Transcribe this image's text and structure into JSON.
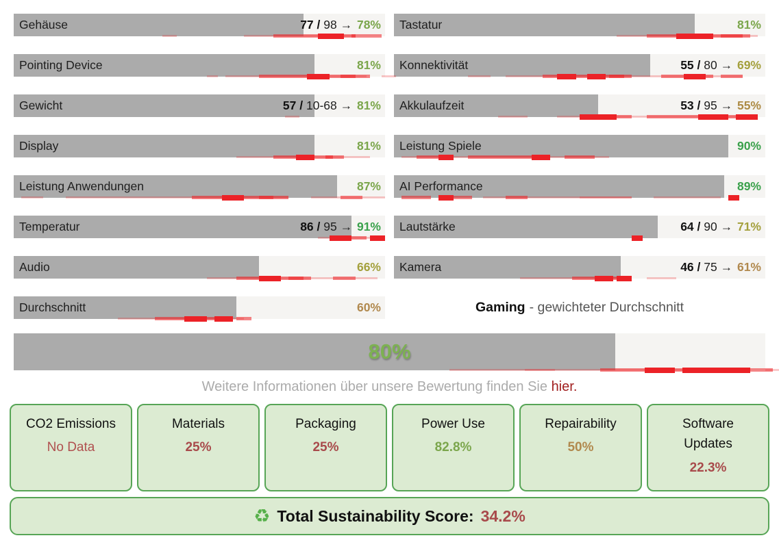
{
  "ratings": {
    "left": [
      {
        "label": "Gehäuse",
        "raw": "77",
        "max": "98",
        "pct": "78%",
        "fill": 78,
        "color": "#7ba64c",
        "dist": [
          [
            40,
            4,
            1
          ],
          [
            62,
            30,
            1
          ],
          [
            70,
            22,
            2
          ],
          [
            82,
            7,
            3
          ],
          [
            91,
            8,
            2
          ]
        ]
      },
      {
        "label": "Pointing Device",
        "pct": "81%",
        "fill": 81,
        "color": "#7ba64c",
        "dist": [
          [
            52,
            3,
            1
          ],
          [
            57,
            38,
            1
          ],
          [
            66,
            26,
            2
          ],
          [
            79,
            6,
            3
          ],
          [
            88,
            8,
            2
          ],
          [
            99,
            4,
            1
          ]
        ]
      },
      {
        "label": "Gewicht",
        "raw": "57",
        "max": "10-68",
        "pct": "81%",
        "fill": 81,
        "color": "#7ba64c",
        "dist": [
          [
            73,
            4,
            1
          ]
        ]
      },
      {
        "label": "Display",
        "pct": "81%",
        "fill": 81,
        "color": "#7ba64c",
        "dist": [
          [
            60,
            36,
            1
          ],
          [
            70,
            16,
            2
          ],
          [
            76,
            5,
            3
          ],
          [
            84,
            5,
            2
          ]
        ]
      },
      {
        "label": "Leistung Anwendungen",
        "pct": "87%",
        "fill": 87,
        "color": "#7ba64c",
        "dist": [
          [
            2,
            6,
            1
          ],
          [
            14,
            60,
            1
          ],
          [
            48,
            26,
            2
          ],
          [
            56,
            6,
            3
          ],
          [
            66,
            4,
            2
          ],
          [
            80,
            16,
            1
          ],
          [
            88,
            6,
            2
          ],
          [
            96,
            4,
            1
          ]
        ]
      },
      {
        "label": "Temperatur",
        "raw": "86",
        "max": "95",
        "pct": "91%",
        "fill": 91,
        "color": "#3ba14c",
        "dist": [
          [
            82,
            18,
            1
          ],
          [
            85,
            6,
            3
          ],
          [
            90,
            5,
            2
          ],
          [
            96,
            4,
            3
          ]
        ]
      },
      {
        "label": "Audio",
        "pct": "66%",
        "fill": 66,
        "color": "#a4a03d",
        "dist": [
          [
            52,
            46,
            1
          ],
          [
            60,
            18,
            2
          ],
          [
            66,
            6,
            3
          ],
          [
            74,
            6,
            2
          ],
          [
            86,
            6,
            2
          ]
        ]
      },
      {
        "label": "Durchschnitt",
        "pct": "60%",
        "fill": 60,
        "color": "#b1894e",
        "dist": [
          [
            28,
            34,
            1
          ],
          [
            38,
            20,
            2
          ],
          [
            46,
            6,
            3
          ],
          [
            54,
            5,
            3
          ],
          [
            60,
            4,
            2
          ]
        ]
      }
    ],
    "right": [
      {
        "label": "Tastatur",
        "pct": "81%",
        "fill": 81,
        "color": "#7ba64c",
        "dist": [
          [
            60,
            38,
            1
          ],
          [
            68,
            28,
            2
          ],
          [
            76,
            10,
            3
          ],
          [
            88,
            6,
            2
          ]
        ]
      },
      {
        "label": "Konnektivität",
        "raw": "55",
        "max": "80",
        "pct": "69%",
        "fill": 69,
        "color": "#a4a03d",
        "dist": [
          [
            20,
            6,
            1
          ],
          [
            30,
            64,
            1
          ],
          [
            40,
            24,
            2
          ],
          [
            44,
            5,
            3
          ],
          [
            52,
            5,
            3
          ],
          [
            58,
            4,
            2
          ],
          [
            72,
            14,
            2
          ],
          [
            78,
            6,
            3
          ],
          [
            88,
            6,
            2
          ]
        ]
      },
      {
        "label": "Akkulaufzeit",
        "raw": "53",
        "max": "95",
        "pct": "55%",
        "fill": 55,
        "color": "#ad8b45",
        "dist": [
          [
            28,
            8,
            1
          ],
          [
            44,
            52,
            1
          ],
          [
            50,
            10,
            3
          ],
          [
            56,
            8,
            2
          ],
          [
            68,
            24,
            2
          ],
          [
            82,
            8,
            3
          ],
          [
            92,
            6,
            3
          ]
        ]
      },
      {
        "label": "Leistung Spiele",
        "pct": "90%",
        "fill": 90,
        "color": "#3ba14c",
        "dist": [
          [
            2,
            56,
            1
          ],
          [
            6,
            8,
            2
          ],
          [
            12,
            4,
            3
          ],
          [
            20,
            10,
            2
          ],
          [
            30,
            10,
            2
          ],
          [
            37,
            5,
            3
          ],
          [
            46,
            8,
            2
          ]
        ]
      },
      {
        "label": "AI Performance",
        "pct": "89%",
        "fill": 89,
        "color": "#3ba14c",
        "dist": [
          [
            2,
            8,
            2
          ],
          [
            12,
            4,
            3
          ],
          [
            16,
            5,
            2
          ],
          [
            24,
            40,
            1
          ],
          [
            30,
            6,
            2
          ],
          [
            50,
            14,
            1
          ],
          [
            70,
            18,
            1
          ],
          [
            90,
            3,
            3
          ]
        ]
      },
      {
        "label": "Lautstärke",
        "raw": "64",
        "max": "90",
        "pct": "71%",
        "fill": 71,
        "color": "#a4a03d",
        "dist": [
          [
            64,
            3,
            3
          ]
        ]
      },
      {
        "label": "Kamera",
        "raw": "46",
        "max": "75",
        "pct": "61%",
        "fill": 61,
        "color": "#b1894e",
        "dist": [
          [
            34,
            30,
            1
          ],
          [
            48,
            12,
            2
          ],
          [
            54,
            5,
            3
          ],
          [
            60,
            4,
            3
          ],
          [
            68,
            8,
            1
          ]
        ]
      }
    ],
    "separator": "/",
    "arrow": "→",
    "caption": {
      "bold": "Gaming",
      "rest": "- gewichteter Durchschnitt"
    }
  },
  "overall": {
    "pct": "80%",
    "fill": 80,
    "color": "#7db152",
    "dist": [
      [
        58,
        14,
        1
      ],
      [
        68,
        22,
        1
      ],
      [
        78,
        16,
        2
      ],
      [
        84,
        4,
        3
      ],
      [
        89,
        4,
        3
      ],
      [
        93,
        5,
        3
      ],
      [
        97,
        4,
        2
      ],
      [
        100,
        3,
        1
      ]
    ]
  },
  "info": {
    "text": "Weitere Informationen über unsere Bewertung finden Sie",
    "link": "hier",
    "suffix": "."
  },
  "sustainability": {
    "boxes": [
      {
        "title": "CO2 Emissions",
        "value": "No Data",
        "color": "#b0504f",
        "bold": false
      },
      {
        "title": "Materials",
        "value": "25%",
        "color": "#a84a4b",
        "bold": true
      },
      {
        "title": "Packaging",
        "value": "25%",
        "color": "#a84a4b",
        "bold": true
      },
      {
        "title": "Power Use",
        "value": "82.8%",
        "color": "#7ba64c",
        "bold": true
      },
      {
        "title": "Repairability",
        "value": "50%",
        "color": "#b1894e",
        "bold": true
      },
      {
        "title": "Software Updates",
        "value": "22.3%",
        "color": "#a84a4b",
        "bold": true
      }
    ],
    "total": {
      "icon": "♻",
      "label": "Total Sustainability Score:",
      "value": "34.2%"
    }
  }
}
